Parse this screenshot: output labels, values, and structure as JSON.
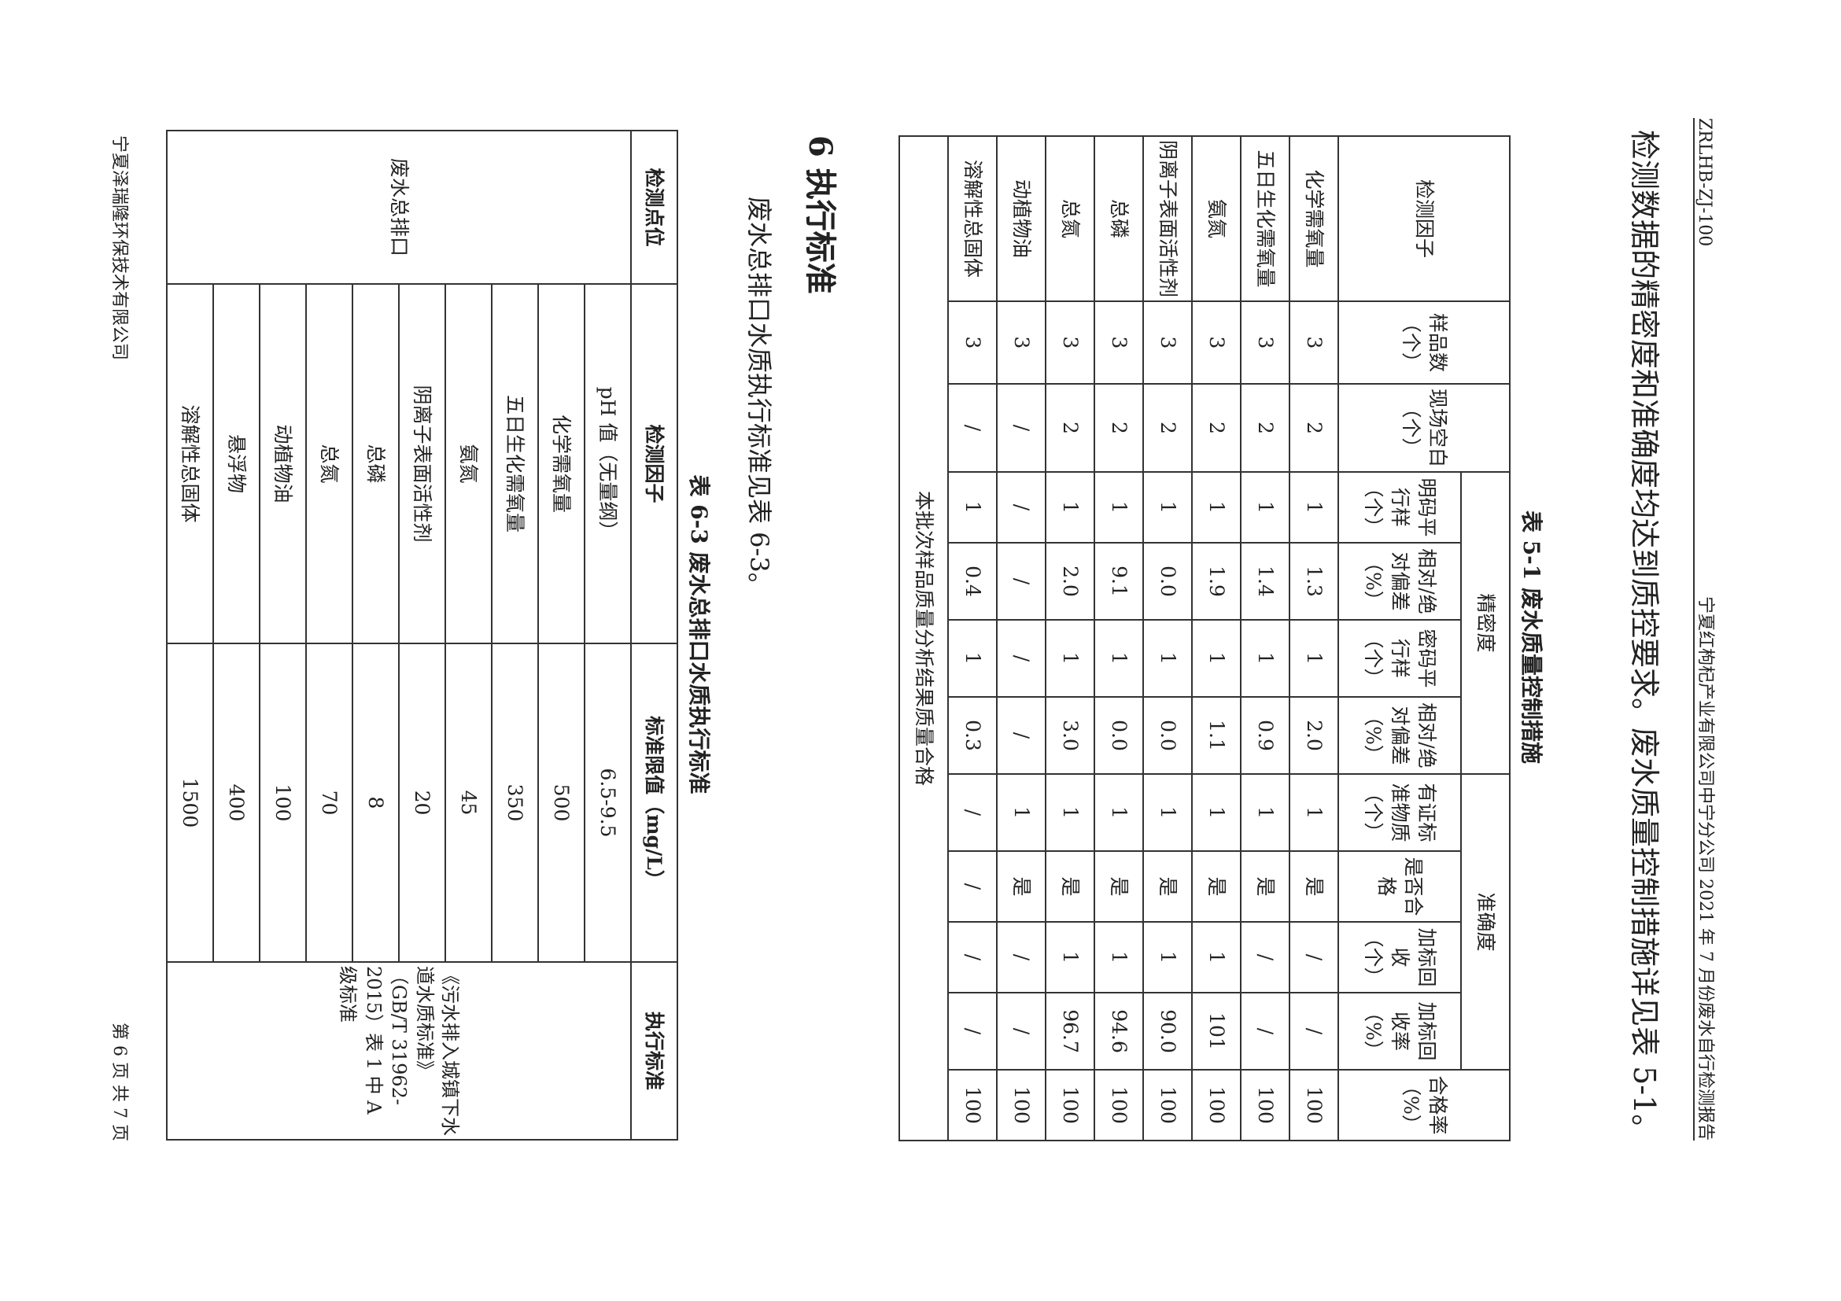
{
  "header": {
    "code": "ZRLHB-ZJ-100",
    "report": "宁夏红枸杞产业有限公司中宁分公司 2021 年 7 月份废水自行检测报告"
  },
  "intro": "检测数据的精密度和准确度均达到质控要求。废水质量控制措施详见表 5-1。",
  "table_5_1": {
    "caption": "表 5-1  废水质量控制措施",
    "groups": {
      "precision": "精密度",
      "accuracy": "准确度"
    },
    "columns": [
      "检测因子",
      "样品数（个）",
      "现场空白（个）",
      "明码平行样（个）",
      "相对/绝对偏差（%）",
      "密码平行样（个）",
      "相对/绝对偏差（%）",
      "有证标准物质（个）",
      "是否合格",
      "加标回收（个）",
      "加标回收率（%）",
      "合格率（%）"
    ],
    "rows": [
      [
        "化学需氧量",
        "3",
        "2",
        "1",
        "1.3",
        "1",
        "2.0",
        "1",
        "是",
        "/",
        "/",
        "100"
      ],
      [
        "五日生化需氧量",
        "3",
        "2",
        "1",
        "1.4",
        "1",
        "0.9",
        "1",
        "是",
        "/",
        "/",
        "100"
      ],
      [
        "氨氮",
        "3",
        "2",
        "1",
        "1.9",
        "1",
        "1.1",
        "1",
        "是",
        "1",
        "101",
        "100"
      ],
      [
        "阴离子表面活性剂",
        "3",
        "2",
        "1",
        "0.0",
        "1",
        "0.0",
        "1",
        "是",
        "1",
        "90.0",
        "100"
      ],
      [
        "总磷",
        "3",
        "2",
        "1",
        "9.1",
        "1",
        "0.0",
        "1",
        "是",
        "1",
        "94.6",
        "100"
      ],
      [
        "总氮",
        "3",
        "2",
        "1",
        "2.0",
        "1",
        "3.0",
        "1",
        "是",
        "1",
        "96.7",
        "100"
      ],
      [
        "动植物油",
        "3",
        "/",
        "/",
        "/",
        "/",
        "/",
        "1",
        "是",
        "/",
        "/",
        "100"
      ],
      [
        "溶解性总固体",
        "3",
        "/",
        "1",
        "0.4",
        "1",
        "0.3",
        "/",
        "/",
        "/",
        "/",
        "100"
      ]
    ],
    "note": "本批次样品质量分析结果质量合格"
  },
  "section": "6 执行标准",
  "section_text": "废水总排口水质执行标准见表 6-3。",
  "table_6_3": {
    "caption": "表 6-3  废水总排口水质执行标准",
    "columns": [
      "检测点位",
      "检测因子",
      "标准限值（mg/L）",
      "执行标准"
    ],
    "point": "废水总排口",
    "standard": "《污水排入城镇下水道水质标准》（GB/T 31962-2015）表 1 中 A 级标准",
    "rows": [
      [
        "pH 值（无量纲）",
        "6.5-9.5"
      ],
      [
        "化学需氧量",
        "500"
      ],
      [
        "五日生化需氧量",
        "350"
      ],
      [
        "氨氮",
        "45"
      ],
      [
        "阴离子表面活性剂",
        "20"
      ],
      [
        "总磷",
        "8"
      ],
      [
        "总氮",
        "70"
      ],
      [
        "动植物油",
        "100"
      ],
      [
        "悬浮物",
        "400"
      ],
      [
        "溶解性总固体",
        "1500"
      ]
    ]
  },
  "footer": {
    "company": "宁夏泽瑞隆环保技术有限公司",
    "page": "第 6 页 共 7 页"
  }
}
